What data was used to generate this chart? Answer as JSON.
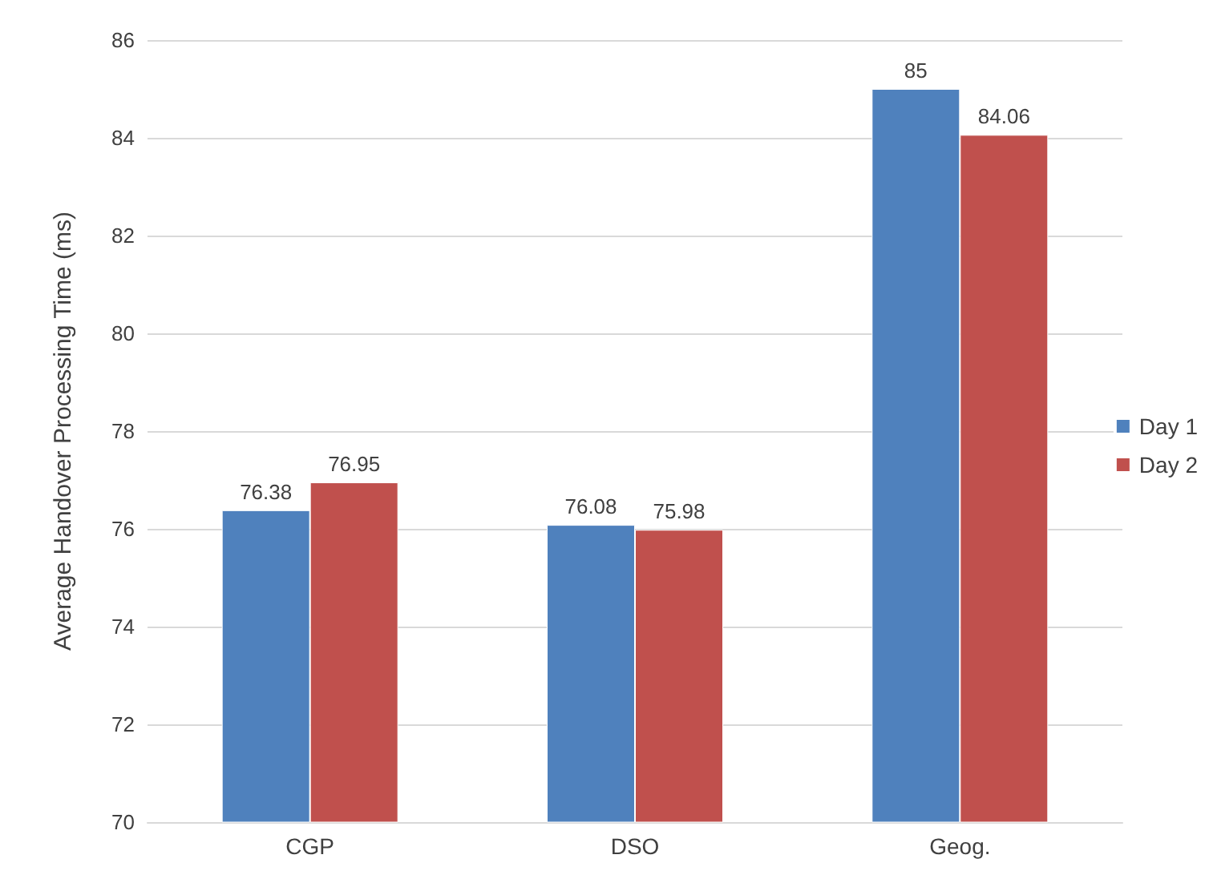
{
  "chart_data": {
    "type": "bar",
    "ylabel": "Average Handover Processing Time (ms)",
    "categories": [
      "CGP",
      "DSO",
      "Geog."
    ],
    "series": [
      {
        "name": "Day 1",
        "color": "#4f81bd",
        "values": [
          76.38,
          76.08,
          85
        ]
      },
      {
        "name": "Day 2",
        "color": "#c0504d",
        "values": [
          76.95,
          75.98,
          84.06
        ]
      }
    ],
    "ylim": [
      70,
      86
    ],
    "yticks": [
      70,
      72,
      74,
      76,
      78,
      80,
      82,
      84,
      86
    ],
    "grid": "y",
    "legend": "right",
    "data_labels": true
  }
}
